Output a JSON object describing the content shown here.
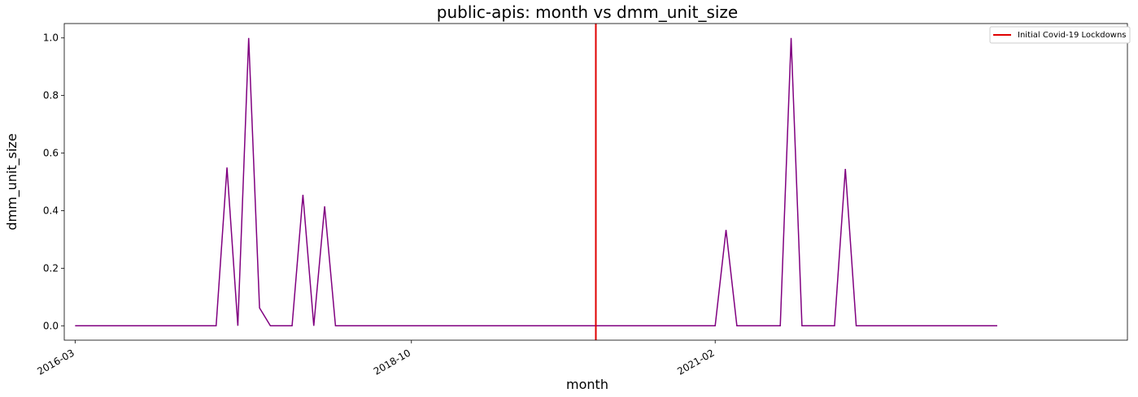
{
  "chart_data": {
    "type": "line",
    "title": "public-apis: month vs dmm_unit_size",
    "xlabel": "month",
    "ylabel": "dmm_unit_size",
    "x_tick_labels": [
      "2016-03",
      "2018-10",
      "2021-02"
    ],
    "y_tick_labels": [
      "0.0",
      "0.2",
      "0.4",
      "0.6",
      "0.8",
      "1.0"
    ],
    "ylim": [
      -0.05,
      1.05
    ],
    "x_range": [
      "2016-02",
      "2024-04"
    ],
    "grid": false,
    "legend_position": "top-right",
    "line_color": "#800080",
    "vline_color": "#e00000",
    "series": [
      {
        "x": [
          "2016-03",
          "2016-04",
          "2016-05",
          "2016-06",
          "2016-07",
          "2016-08",
          "2016-09",
          "2016-10",
          "2016-11",
          "2016-12",
          "2017-01",
          "2017-02",
          "2017-03",
          "2017-04",
          "2017-05",
          "2017-06",
          "2017-07",
          "2017-08",
          "2017-09",
          "2017-10",
          "2017-11",
          "2017-12",
          "2018-01",
          "2018-02",
          "2018-03",
          "2018-04",
          "2018-05",
          "2018-06",
          "2018-07",
          "2018-08",
          "2018-09",
          "2018-10",
          "2018-11",
          "2018-12",
          "2019-01",
          "2019-02",
          "2019-03",
          "2019-04",
          "2019-05",
          "2019-06",
          "2019-07",
          "2019-08",
          "2019-09",
          "2019-10",
          "2019-11",
          "2019-12",
          "2020-01",
          "2020-02",
          "2020-03",
          "2020-04",
          "2020-05",
          "2020-06",
          "2020-07",
          "2020-08",
          "2020-09",
          "2020-10",
          "2020-11",
          "2020-12",
          "2021-01",
          "2021-02",
          "2021-03",
          "2021-04",
          "2021-05",
          "2021-06",
          "2021-07",
          "2021-08",
          "2021-09",
          "2021-10",
          "2021-11",
          "2021-12",
          "2022-01",
          "2022-02",
          "2022-03",
          "2022-04",
          "2022-05",
          "2022-06",
          "2022-07",
          "2022-08",
          "2022-09",
          "2022-10",
          "2022-11",
          "2022-12",
          "2023-01",
          "2023-02",
          "2023-03",
          "2023-04"
        ],
        "y": [
          0,
          0,
          0,
          0,
          0,
          0,
          0,
          0,
          0,
          0,
          0,
          0,
          0,
          0,
          0.55,
          0,
          1.0,
          0.062,
          0,
          0,
          0,
          0.455,
          0,
          0.415,
          0,
          0,
          0,
          0,
          0,
          0,
          0,
          0,
          0,
          0,
          0,
          0,
          0,
          0,
          0,
          0,
          0,
          0,
          0,
          0,
          0,
          0,
          0,
          0,
          0,
          0,
          0,
          0,
          0,
          0,
          0,
          0,
          0,
          0,
          0,
          0,
          0.333,
          0,
          0,
          0,
          0,
          0,
          1.0,
          0,
          0,
          0,
          0,
          0.545,
          0,
          0,
          0,
          0,
          0,
          0,
          0,
          0,
          0,
          0,
          0,
          0,
          0,
          0
        ]
      }
    ],
    "vlines": [
      {
        "x": "2020-03",
        "label": "Initial Covid-19 Lockdowns"
      }
    ]
  }
}
